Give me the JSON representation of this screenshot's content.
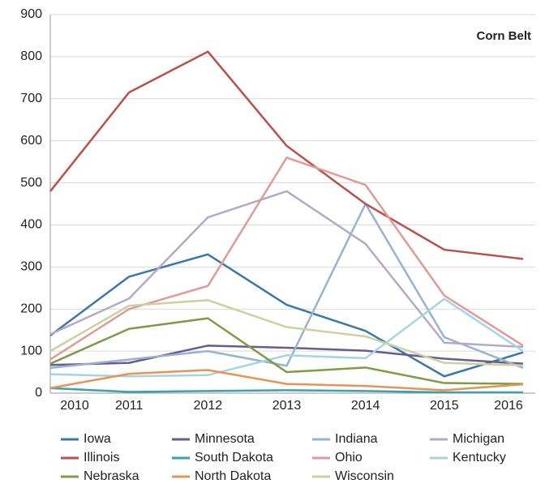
{
  "chart_data": {
    "type": "line",
    "annotation": "Corn Belt",
    "categories": [
      "2010",
      "2011",
      "2012",
      "2013",
      "2014",
      "2015",
      "2016"
    ],
    "ylim": [
      0,
      900
    ],
    "yticks": [
      0,
      100,
      200,
      300,
      400,
      500,
      600,
      700,
      800,
      900
    ],
    "grid": true,
    "series": [
      {
        "name": "Iowa",
        "color": "#3a78a8",
        "values": [
          137,
          277,
          330,
          210,
          148,
          40,
          97
        ]
      },
      {
        "name": "Minnesota",
        "color": "#6a5b8e",
        "values": [
          67,
          72,
          113,
          108,
          101,
          82,
          70
        ]
      },
      {
        "name": "Indiana",
        "color": "#98b2d1",
        "values": [
          60,
          80,
          100,
          65,
          450,
          133,
          60
        ]
      },
      {
        "name": "Michigan",
        "color": "#b4a9c9",
        "values": [
          140,
          225,
          418,
          480,
          355,
          120,
          110
        ]
      },
      {
        "name": "Illinois",
        "color": "#b8514a",
        "values": [
          480,
          715,
          812,
          588,
          450,
          341,
          319
        ]
      },
      {
        "name": "South Dakota",
        "color": "#3aa1b0",
        "values": [
          12,
          3,
          5,
          7,
          5,
          2,
          2
        ]
      },
      {
        "name": "Ohio",
        "color": "#e09b96",
        "values": [
          80,
          200,
          255,
          560,
          495,
          232,
          113
        ]
      },
      {
        "name": "Kentucky",
        "color": "#a7d3e2",
        "values": [
          45,
          40,
          43,
          90,
          83,
          224,
          100
        ]
      },
      {
        "name": "Nebraska",
        "color": "#7e9c45",
        "values": [
          70,
          153,
          178,
          50,
          61,
          24,
          22
        ]
      },
      {
        "name": "North Dakota",
        "color": "#e59455",
        "values": [
          12,
          46,
          55,
          22,
          17,
          7,
          21
        ]
      },
      {
        "name": "Wisconsin",
        "color": "#c8d3a1",
        "values": [
          100,
          208,
          221,
          157,
          135,
          72,
          66
        ]
      }
    ]
  }
}
